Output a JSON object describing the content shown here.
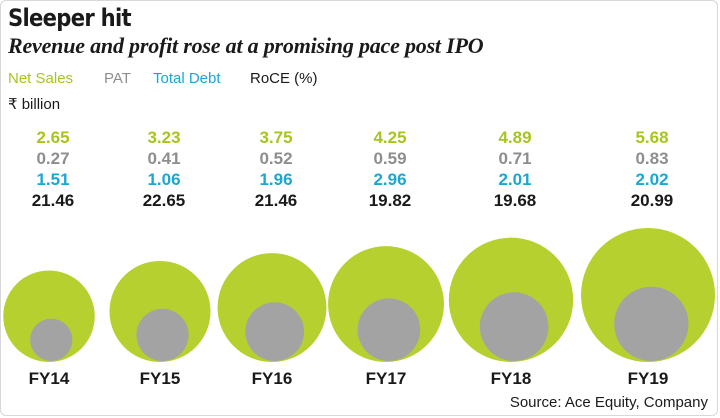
{
  "header": {
    "title": "Sleeper hit",
    "subtitle": "Revenue and profit rose at a promising pace post IPO"
  },
  "legend": {
    "net_sales": "Net Sales",
    "pat": "PAT",
    "total_debt": "Total Debt",
    "roce": "RoCE (%)"
  },
  "unit": "₹ billion",
  "source": "Source: Ace Equity, Company",
  "colors": {
    "net_sales": "#b6d12f",
    "pat": "#a3a3a3",
    "total_debt": "#1aa7d6",
    "roce": "#1a1a1a"
  },
  "chart_data": {
    "type": "bubble",
    "categories": [
      "FY14",
      "FY15",
      "FY16",
      "FY17",
      "FY18",
      "FY19"
    ],
    "series": [
      {
        "name": "Net Sales",
        "values": [
          "2.65",
          "3.23",
          "3.75",
          "4.25",
          "4.89",
          "5.68"
        ]
      },
      {
        "name": "PAT",
        "values": [
          "0.27",
          "0.41",
          "0.52",
          "0.59",
          "0.71",
          "0.83"
        ]
      },
      {
        "name": "Total Debt",
        "values": [
          "1.51",
          "1.06",
          "1.96",
          "2.96",
          "2.01",
          "2.02"
        ]
      },
      {
        "name": "RoCE (%)",
        "values": [
          "21.46",
          "22.65",
          "21.46",
          "19.82",
          "19.68",
          "20.99"
        ]
      }
    ],
    "bubble_area_series": [
      "Net Sales",
      "PAT"
    ],
    "title": "Sleeper hit",
    "subtitle": "Revenue and profit rose at a promising pace post IPO"
  }
}
